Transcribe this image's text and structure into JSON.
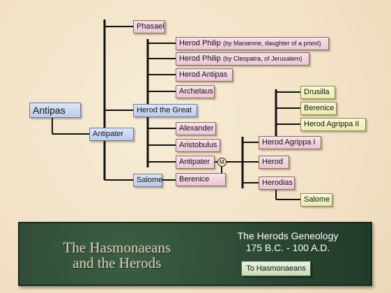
{
  "tree": {
    "antipas": "Antipas",
    "antipater_root": "Antipater",
    "phasael": "Phasael",
    "herod_the_great": "Herod the Great",
    "salome_sister": "Salome",
    "herod_philip_1": "Herod Philip",
    "herod_philip_1_note": "(by Mariamne, daughter of a priest)",
    "herod_philip_2": "Herod Philip",
    "herod_philip_2_note": "(by Cleopatra, of Jerusalem)",
    "herod_antipas": "Herod Antipas",
    "archelaus": "Archelaus",
    "alexander": "Alexander",
    "aristobulus": "Aristobulus",
    "antipater_son": "Antipater",
    "marriage_mark": "M",
    "berenice_wife": "Berenice",
    "herod_agrippa_1": "Herod Agrippa I",
    "herod": "Herod",
    "herodias": "Herodias",
    "drusilla": "Drusilla",
    "berenice_daughter": "Berenice",
    "herod_agrippa_2": "Herod Agrippa II",
    "salome_daughter": "Salome"
  },
  "colors": {
    "pink_node": "#f3d3e0",
    "blue_node": "#c9d6f0",
    "yellow_node": "#f4f3c2",
    "panel_green": "#2f4c38",
    "background": "#f3e5cc"
  },
  "panel": {
    "title_line1": "The Hasmonaeans",
    "title_line2": "and the Herods",
    "subtitle_line1": "The Herods Geneology",
    "subtitle_line2": "175 B.C. - 100 A.D.",
    "button_label": "To Hasmonaeans"
  }
}
